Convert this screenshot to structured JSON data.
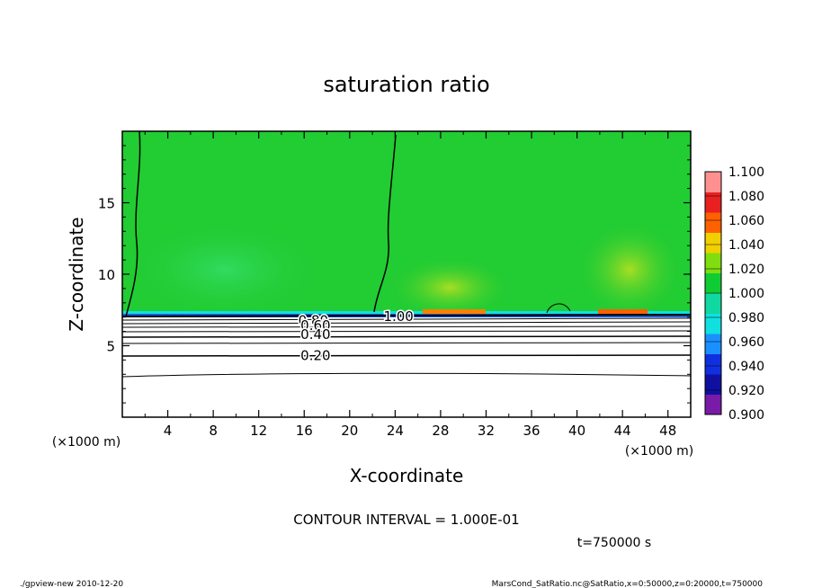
{
  "chart_data": {
    "type": "heatmap",
    "title": "saturation ratio",
    "xlabel": "X-coordinate",
    "ylabel": "Z-coordinate",
    "x_unit": "(×1000 m)",
    "y_unit": "(×1000 m)",
    "xlim": [
      0,
      50
    ],
    "ylim": [
      0,
      20
    ],
    "x_ticks": [
      "4",
      "8",
      "12",
      "16",
      "20",
      "24",
      "28",
      "32",
      "36",
      "40",
      "44",
      "48"
    ],
    "y_ticks": [
      "5",
      "10",
      "15"
    ],
    "contour_labels": [
      "1.00",
      "0.80",
      "0.60",
      "0.40",
      "0.20"
    ],
    "contour_interval_text": "CONTOUR INTERVAL = 1.000E-01",
    "time_text": "t=750000 s",
    "colorbar": {
      "levels": [
        "0.900",
        "0.920",
        "0.940",
        "0.960",
        "0.980",
        "1.000",
        "1.020",
        "1.040",
        "1.060",
        "1.080",
        "1.100"
      ],
      "colors": [
        "#7a1aa8",
        "#1010a0",
        "#1030e0",
        "#1a90ff",
        "#10e0e0",
        "#10d8a0",
        "#10cc33",
        "#80dd10",
        "#f0d000",
        "#ff6000",
        "#e82020",
        "#ff9090"
      ]
    },
    "layers": {
      "ground_top_z": 7.0,
      "fill_above": "#22cc33",
      "fill_below": "#ffffff"
    }
  },
  "footer": {
    "left": "./gpview-new   2010-12-20",
    "right": "MarsCond_SatRatio.nc@SatRatio,x=0:50000,z=0:20000,t=750000"
  }
}
